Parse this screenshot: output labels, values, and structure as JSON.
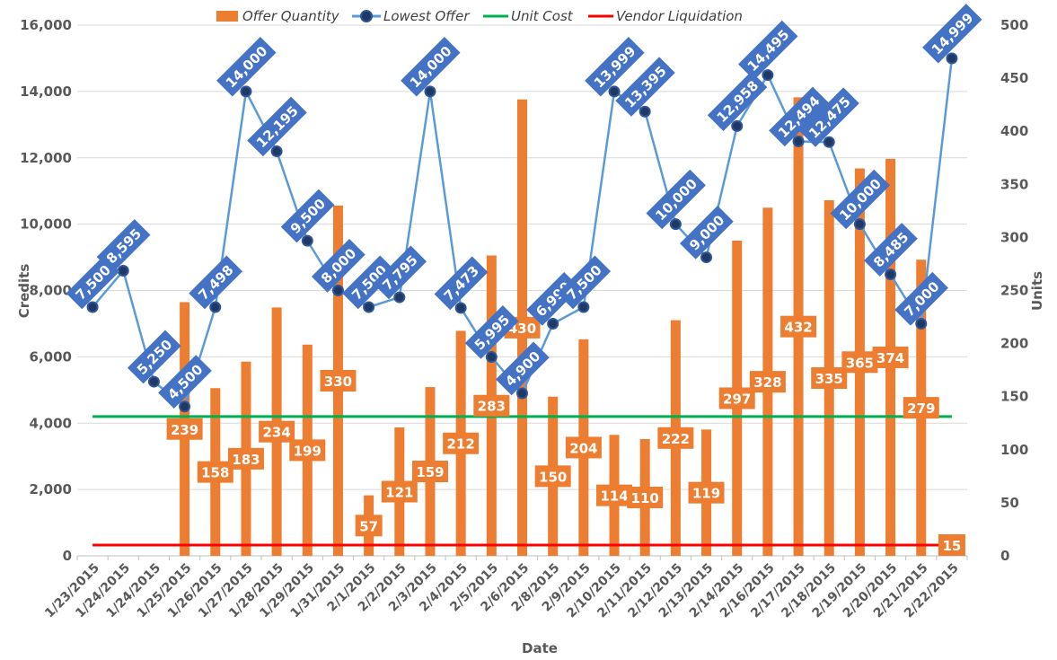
{
  "chart_data": {
    "type": "bar",
    "title": "",
    "xlabel": "Date",
    "ylabel": "Credits",
    "y2label": "Units",
    "ylim": [
      0,
      16000
    ],
    "y2lim": [
      0,
      500
    ],
    "y_ticks": [
      "0",
      "2,000",
      "4,000",
      "6,000",
      "8,000",
      "10,000",
      "12,000",
      "14,000",
      "16,000"
    ],
    "y2_ticks": [
      "0",
      "50",
      "100",
      "150",
      "200",
      "250",
      "300",
      "350",
      "400",
      "450",
      "500"
    ],
    "grid": true,
    "legend_position": "top",
    "categories": [
      "1/23/2015",
      "1/24/2015",
      "1/24/2015",
      "1/25/2015",
      "1/26/2015",
      "1/27/2015",
      "1/28/2015",
      "1/29/2015",
      "1/31/2015",
      "2/1/2015",
      "2/2/2015",
      "2/3/2015",
      "2/4/2015",
      "2/5/2015",
      "2/6/2015",
      "2/8/2015",
      "2/9/2015",
      "2/10/2015",
      "2/11/2015",
      "2/12/2015",
      "2/13/2015",
      "2/14/2015",
      "2/16/2015",
      "2/17/2015",
      "2/18/2015",
      "2/19/2015",
      "2/20/2015",
      "2/21/2015",
      "2/22/2015"
    ],
    "series": [
      {
        "name": "Offer Quantity",
        "type": "bar",
        "axis": "right",
        "color": "#ED7D31",
        "values": [
          null,
          null,
          null,
          239,
          158,
          183,
          234,
          199,
          330,
          57,
          121,
          159,
          212,
          283,
          430,
          150,
          204,
          114,
          110,
          222,
          119,
          297,
          328,
          432,
          335,
          365,
          374,
          279,
          15
        ]
      },
      {
        "name": "Lowest Offer",
        "type": "line",
        "axis": "left",
        "color": "#5B9BD5",
        "marker_color": "#1F3864",
        "label_color": "#4472C4",
        "values": [
          7500,
          8595,
          5250,
          4500,
          7498,
          14000,
          12195,
          9500,
          8000,
          7500,
          7795,
          14000,
          7473,
          5995,
          4900,
          6999,
          7500,
          13999,
          13395,
          10000,
          9000,
          12958,
          14495,
          12494,
          12475,
          10000,
          8485,
          7000,
          14999
        ],
        "labels": [
          "7,500",
          "8,595",
          "5,250",
          "4,500",
          "7,498",
          "14,000",
          "12,195",
          "9,500",
          "8,000",
          "7,500",
          "7,795",
          "14,000",
          "7,473",
          "5,995",
          "4,900",
          "6,999",
          "7,500",
          "13,999",
          "13,395",
          "10,000",
          "9,000",
          "12,958",
          "14,495",
          "12,494",
          "12,475",
          "10,000",
          "8,485",
          "7,000",
          "14,999"
        ]
      },
      {
        "name": "Unit Cost",
        "type": "line",
        "axis": "left",
        "color": "#00B050",
        "constant": 4200
      },
      {
        "name": "Vendor Liquidation",
        "type": "line",
        "axis": "left",
        "color": "#FF0000",
        "constant": 325
      }
    ]
  }
}
